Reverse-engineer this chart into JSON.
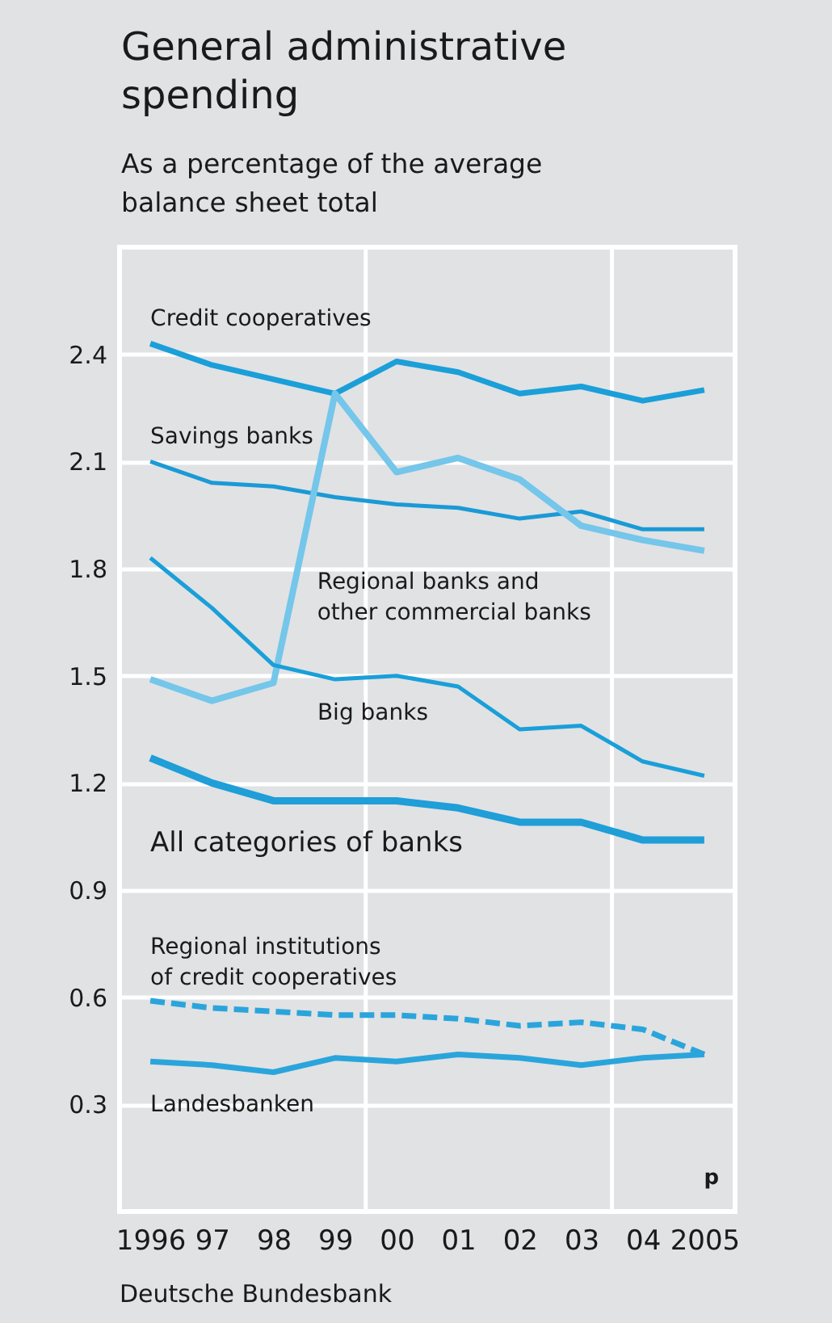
{
  "chart_data": {
    "type": "line",
    "title": "General administrative spending",
    "subtitle": "As a percentage of the average balance sheet total",
    "x": [
      1996,
      1997,
      1998,
      1999,
      2000,
      2001,
      2002,
      2003,
      2004,
      2005
    ],
    "xlim": [
      1995.5,
      2005.5
    ],
    "xticks": [
      {
        "value": 1996,
        "label": "1996"
      },
      {
        "value": 1997,
        "label": "97"
      },
      {
        "value": 1998,
        "label": "98"
      },
      {
        "value": 1999,
        "label": "99"
      },
      {
        "value": 2000,
        "label": "00"
      },
      {
        "value": 2001,
        "label": "01"
      },
      {
        "value": 2002,
        "label": "02"
      },
      {
        "value": 2003,
        "label": "03"
      },
      {
        "value": 2004,
        "label": "04"
      },
      {
        "value": 2005,
        "label": "2005"
      }
    ],
    "ylim": [
      0,
      2.7
    ],
    "yticks": [
      0.3,
      0.6,
      0.9,
      1.2,
      1.5,
      1.8,
      2.1,
      2.4
    ],
    "grid": "y",
    "marker": "none",
    "line_style": "solid",
    "ref_lines": [
      {
        "axis": "x",
        "value": 1999.5,
        "color": "#ffffff"
      },
      {
        "axis": "x",
        "value": 2003.5,
        "color": "#ffffff"
      }
    ],
    "series": [
      {
        "name": "Credit cooperatives",
        "color": "#1a9fd9",
        "values": [
          2.43,
          2.37,
          2.33,
          2.29,
          2.38,
          2.35,
          2.29,
          2.31,
          2.27,
          2.3
        ]
      },
      {
        "name": "Savings banks",
        "color": "#1a9ad6",
        "values": [
          2.1,
          2.04,
          2.03,
          2.0,
          1.98,
          1.97,
          1.94,
          1.96,
          1.91,
          1.91
        ]
      },
      {
        "name": "Regional banks and other commercial banks",
        "color": "#74c6ea",
        "values": [
          1.49,
          1.43,
          1.48,
          2.29,
          2.07,
          2.11,
          2.05,
          1.92,
          1.88,
          1.85
        ]
      },
      {
        "name": "Big banks",
        "color": "#1a9fd9",
        "values": [
          1.83,
          1.69,
          1.53,
          1.49,
          1.5,
          1.47,
          1.35,
          1.36,
          1.26,
          1.22
        ]
      },
      {
        "name": "All categories of banks",
        "color": "#1f9ed8",
        "values": [
          1.27,
          1.2,
          1.15,
          1.15,
          1.15,
          1.13,
          1.09,
          1.09,
          1.04,
          1.04
        ]
      },
      {
        "name": "Regional institutions of credit cooperatives",
        "color": "#2aa5dc",
        "line_style": "dashed",
        "values": [
          0.59,
          0.57,
          0.56,
          0.55,
          0.55,
          0.54,
          0.52,
          0.53,
          0.51,
          0.44
        ]
      },
      {
        "name": "Landesbanken",
        "color": "#2aa5dc",
        "values": [
          0.42,
          0.41,
          0.39,
          0.43,
          0.42,
          0.44,
          0.43,
          0.41,
          0.43,
          0.44
        ]
      }
    ],
    "annotations": [
      "p",
      "Deutsche Bundesbank"
    ]
  }
}
